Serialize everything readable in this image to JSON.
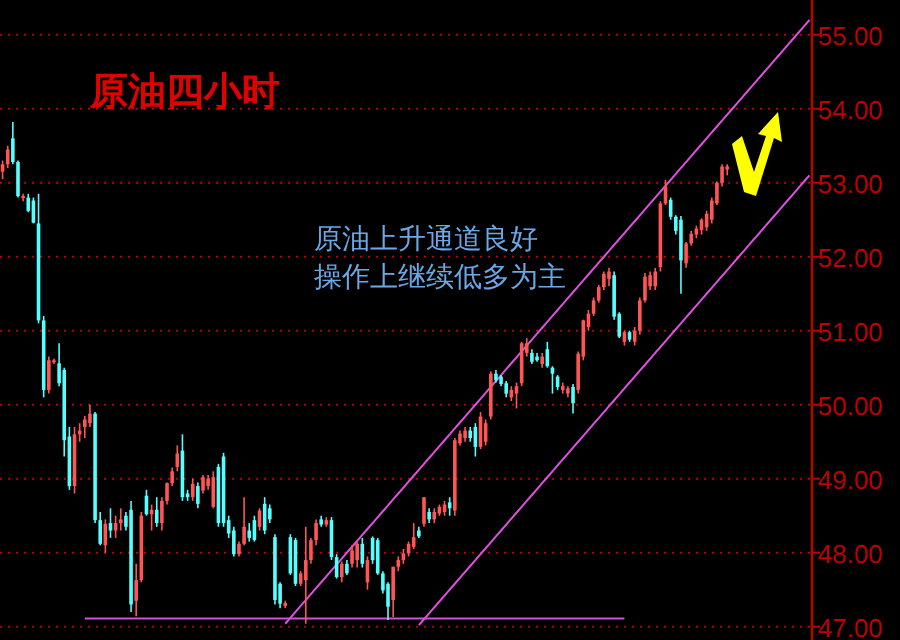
{
  "chart_data": {
    "type": "candlestick",
    "title": "原油四小时",
    "annotations": [
      "原油上升通道良好",
      "操作上继续低多为主"
    ],
    "categories": [
      null,
      null,
      null,
      null,
      null,
      null,
      null,
      null,
      null,
      null,
      null,
      null,
      null,
      null,
      null,
      null,
      null,
      null,
      null,
      null,
      null,
      null,
      null,
      null,
      null,
      null,
      null,
      null,
      null,
      null,
      null,
      null,
      null,
      null,
      null,
      null,
      null,
      null,
      null,
      null,
      null,
      null,
      null,
      null,
      null,
      null,
      null,
      null,
      null,
      null,
      null,
      null,
      null,
      null,
      null,
      null,
      null,
      null,
      null,
      null,
      null,
      null,
      null,
      null,
      null,
      null,
      null,
      null,
      null,
      null,
      null,
      null,
      null,
      null,
      null,
      null,
      null,
      null,
      null,
      null,
      null,
      null,
      null,
      null,
      null,
      null,
      null,
      null,
      null,
      null,
      null,
      null,
      null,
      null,
      null,
      null,
      null,
      null,
      null,
      null,
      null,
      null,
      null,
      null,
      null,
      null,
      null,
      null,
      null,
      null,
      null,
      null,
      null,
      null,
      null,
      null,
      null,
      null,
      null,
      null,
      null,
      null,
      null,
      null,
      null,
      null,
      null,
      null,
      null,
      null,
      null,
      null,
      null,
      null,
      null,
      null,
      null,
      null,
      null,
      null,
      null,
      null,
      null,
      null,
      null,
      null,
      null,
      null,
      null,
      null,
      null,
      null,
      null,
      null,
      null,
      null,
      null,
      null
    ],
    "ohlc": [
      [
        53.15,
        53.3,
        53.05,
        53.25
      ],
      [
        53.25,
        53.5,
        53.2,
        53.45
      ],
      [
        53.6,
        53.82,
        53.25,
        53.28
      ],
      [
        53.28,
        53.3,
        52.8,
        52.82
      ],
      [
        52.8,
        52.85,
        52.75,
        52.82
      ],
      [
        52.8,
        52.85,
        52.6,
        52.62
      ],
      [
        52.76,
        52.8,
        52.45,
        52.46
      ],
      [
        52.45,
        52.85,
        51.1,
        51.14
      ],
      [
        51.14,
        51.2,
        50.1,
        50.2
      ],
      [
        50.2,
        50.65,
        50.15,
        50.6
      ],
      [
        50.58,
        50.62,
        50.55,
        50.6
      ],
      [
        50.56,
        50.83,
        50.25,
        50.29
      ],
      [
        50.47,
        50.5,
        49.3,
        49.52
      ],
      [
        49.57,
        49.7,
        48.85,
        48.9
      ],
      [
        48.9,
        49.7,
        48.8,
        49.6
      ],
      [
        49.6,
        49.75,
        49.5,
        49.65
      ],
      [
        49.7,
        49.85,
        49.55,
        49.8
      ],
      [
        49.75,
        50.0,
        49.7,
        49.88
      ],
      [
        49.88,
        49.9,
        48.4,
        48.44
      ],
      [
        48.44,
        48.55,
        48.1,
        48.12
      ],
      [
        48.1,
        48.45,
        48.0,
        48.39
      ],
      [
        48.4,
        48.6,
        48.2,
        48.3
      ],
      [
        48.3,
        48.5,
        48.2,
        48.4
      ],
      [
        48.4,
        48.6,
        48.3,
        48.45
      ],
      [
        48.5,
        48.55,
        48.3,
        48.35
      ],
      [
        48.58,
        48.7,
        47.2,
        47.3
      ],
      [
        47.35,
        47.85,
        47.14,
        47.63
      ],
      [
        47.63,
        48.55,
        47.6,
        48.5
      ],
      [
        48.77,
        48.85,
        48.5,
        48.52
      ],
      [
        48.52,
        48.65,
        48.3,
        48.58
      ],
      [
        48.58,
        48.75,
        48.35,
        48.4
      ],
      [
        48.4,
        48.75,
        48.3,
        48.7
      ],
      [
        48.7,
        48.95,
        48.65,
        48.94
      ],
      [
        48.94,
        49.15,
        48.9,
        49.1
      ],
      [
        49.16,
        49.45,
        49.1,
        49.34
      ],
      [
        49.38,
        49.6,
        48.7,
        48.75
      ],
      [
        48.8,
        48.85,
        48.7,
        48.75
      ],
      [
        48.75,
        49.0,
        48.7,
        48.93
      ],
      [
        48.9,
        48.95,
        48.6,
        48.66
      ],
      [
        48.84,
        49.05,
        48.8,
        49.02
      ],
      [
        48.9,
        49.05,
        48.85,
        49.0
      ],
      [
        48.62,
        49.1,
        48.6,
        49.02
      ],
      [
        49.16,
        49.2,
        48.35,
        48.4
      ],
      [
        49.3,
        49.35,
        48.35,
        48.4
      ],
      [
        48.44,
        48.5,
        48.2,
        48.26
      ],
      [
        48.3,
        48.35,
        47.95,
        47.98
      ],
      [
        47.98,
        48.15,
        47.95,
        48.12
      ],
      [
        48.12,
        48.75,
        48.1,
        48.35
      ],
      [
        48.3,
        48.4,
        48.15,
        48.2
      ],
      [
        48.44,
        48.5,
        48.15,
        48.17
      ],
      [
        48.35,
        48.6,
        48.3,
        48.57
      ],
      [
        48.66,
        48.75,
        48.25,
        48.3
      ],
      [
        48.6,
        48.65,
        48.4,
        48.45
      ],
      [
        48.21,
        48.25,
        47.3,
        47.36
      ],
      [
        47.58,
        47.6,
        47.25,
        47.31
      ],
      [
        47.28,
        47.35,
        47.25,
        47.32
      ],
      [
        48.21,
        48.25,
        47.7,
        47.72
      ],
      [
        48.17,
        48.2,
        47.55,
        47.58
      ],
      [
        47.58,
        47.75,
        47.55,
        47.72
      ],
      [
        47.63,
        48.35,
        47.04,
        47.9
      ],
      [
        47.9,
        48.2,
        47.85,
        48.17
      ],
      [
        48.17,
        48.45,
        48.1,
        48.4
      ],
      [
        48.45,
        48.5,
        48.35,
        48.38
      ],
      [
        48.38,
        48.48,
        48.35,
        48.44
      ],
      [
        48.44,
        48.48,
        47.9,
        47.94
      ],
      [
        47.94,
        47.98,
        47.65,
        47.67
      ],
      [
        47.67,
        47.88,
        47.6,
        47.85
      ],
      [
        47.85,
        47.9,
        47.7,
        47.72
      ],
      [
        47.85,
        48.1,
        47.8,
        48.03
      ],
      [
        47.9,
        48.15,
        47.8,
        48.12
      ],
      [
        48.12,
        48.2,
        47.8,
        47.85
      ],
      [
        47.6,
        47.95,
        47.5,
        47.9
      ],
      [
        48.2,
        48.22,
        47.85,
        47.9
      ],
      [
        48.17,
        48.2,
        47.7,
        47.72
      ],
      [
        47.72,
        47.75,
        47.45,
        47.49
      ],
      [
        47.58,
        47.6,
        47.09,
        47.27
      ],
      [
        47.36,
        47.81,
        47.13,
        47.81
      ],
      [
        47.81,
        47.95,
        47.75,
        47.9
      ],
      [
        47.9,
        48.05,
        47.85,
        47.99
      ],
      [
        47.99,
        48.15,
        47.95,
        48.12
      ],
      [
        48.08,
        48.4,
        48.05,
        48.21
      ],
      [
        48.3,
        48.35,
        48.2,
        48.22
      ],
      [
        48.39,
        48.75,
        48.35,
        48.75
      ],
      [
        48.55,
        48.6,
        48.4,
        48.45
      ],
      [
        48.45,
        48.6,
        48.4,
        48.55
      ],
      [
        48.53,
        48.65,
        48.5,
        48.62
      ],
      [
        48.55,
        48.7,
        48.5,
        48.65
      ],
      [
        48.68,
        48.75,
        48.5,
        48.6
      ],
      [
        48.57,
        49.55,
        48.5,
        49.52
      ],
      [
        49.48,
        49.65,
        49.45,
        49.61
      ],
      [
        49.55,
        49.7,
        49.5,
        49.65
      ],
      [
        49.65,
        49.7,
        49.5,
        49.55
      ],
      [
        49.7,
        49.75,
        49.3,
        49.43
      ],
      [
        49.43,
        49.9,
        49.4,
        49.84
      ],
      [
        49.5,
        49.8,
        49.45,
        49.75
      ],
      [
        49.84,
        50.45,
        49.8,
        50.42
      ],
      [
        50.42,
        50.47,
        50.3,
        50.33
      ],
      [
        50.38,
        50.4,
        50.25,
        50.28
      ],
      [
        50.29,
        50.32,
        50.1,
        50.15
      ],
      [
        50.1,
        50.25,
        50.05,
        50.2
      ],
      [
        50.15,
        50.3,
        49.95,
        50.25
      ],
      [
        50.29,
        50.85,
        50.25,
        50.83
      ],
      [
        50.7,
        50.9,
        50.65,
        50.83
      ],
      [
        50.7,
        50.75,
        50.55,
        50.58
      ],
      [
        50.65,
        50.7,
        50.58,
        50.6
      ],
      [
        50.55,
        50.7,
        50.5,
        50.65
      ],
      [
        50.75,
        50.85,
        50.5,
        50.52
      ],
      [
        50.5,
        50.52,
        50.15,
        50.42
      ],
      [
        50.38,
        50.4,
        50.2,
        50.24
      ],
      [
        50.2,
        50.3,
        50.15,
        50.25
      ],
      [
        50.15,
        50.25,
        50.1,
        50.22
      ],
      [
        50.24,
        50.28,
        49.88,
        50.02
      ],
      [
        50.2,
        50.72,
        50.15,
        50.69
      ],
      [
        50.65,
        51.15,
        50.6,
        51.14
      ],
      [
        51.05,
        51.28,
        51.0,
        51.23
      ],
      [
        51.23,
        51.45,
        51.2,
        51.41
      ],
      [
        51.41,
        51.62,
        51.38,
        51.59
      ],
      [
        51.59,
        51.8,
        51.55,
        51.77
      ],
      [
        51.7,
        51.85,
        51.6,
        51.8
      ],
      [
        51.75,
        51.8,
        51.15,
        51.19
      ],
      [
        51.23,
        51.25,
        50.9,
        50.92
      ],
      [
        50.85,
        51.0,
        50.8,
        50.98
      ],
      [
        50.98,
        51.0,
        50.85,
        50.88
      ],
      [
        50.85,
        51.05,
        50.8,
        51.0
      ],
      [
        51.0,
        51.45,
        50.95,
        51.41
      ],
      [
        51.41,
        51.78,
        51.38,
        51.73
      ],
      [
        51.6,
        51.8,
        51.55,
        51.75
      ],
      [
        51.6,
        51.85,
        51.55,
        51.8
      ],
      [
        51.86,
        52.75,
        51.8,
        52.72
      ],
      [
        52.72,
        53.04,
        52.7,
        52.95
      ],
      [
        52.77,
        52.8,
        52.5,
        52.54
      ],
      [
        52.54,
        52.56,
        52.3,
        52.35
      ],
      [
        52.5,
        52.55,
        51.5,
        51.95
      ],
      [
        51.91,
        52.2,
        51.85,
        52.18
      ],
      [
        52.18,
        52.35,
        52.15,
        52.31
      ],
      [
        52.3,
        52.42,
        52.25,
        52.38
      ],
      [
        52.36,
        52.52,
        52.3,
        52.5
      ],
      [
        52.4,
        52.62,
        52.35,
        52.58
      ],
      [
        52.5,
        52.8,
        52.45,
        52.76
      ],
      [
        52.72,
        53.02,
        52.7,
        53.0
      ],
      [
        53.0,
        53.25,
        52.95,
        53.22
      ],
      [
        53.18,
        53.25,
        53.1,
        53.22
      ],
      null,
      null,
      null,
      null,
      null,
      null,
      null,
      null,
      null,
      null,
      null,
      null,
      null,
      null,
      null,
      null
    ],
    "colors": [
      "#ff5555",
      "#ff5555",
      "#55ffff",
      "#55ffff",
      "#ff5555",
      "#55ffff",
      "#55ffff",
      "#55ffff",
      "#55ffff",
      "#ff5555",
      "#ff5555",
      "#55ffff",
      "#55ffff",
      "#55ffff",
      "#ff5555",
      "#ff5555",
      "#ff5555",
      "#ff5555",
      "#55ffff",
      "#55ffff",
      "#ff5555",
      "#55ffff",
      "#ff5555",
      "#ff5555",
      "#55ffff",
      "#55ffff",
      "#ff5555",
      "#ff5555",
      "#55ffff",
      "#ff5555",
      "#55ffff",
      "#ff5555",
      "#ff5555",
      "#ff5555",
      "#ff5555",
      "#55ffff",
      "#55ffff",
      "#ff5555",
      "#55ffff",
      "#ff5555",
      "#ff5555",
      "#ff5555",
      "#55ffff",
      "#55ffff",
      "#55ffff",
      "#55ffff",
      "#ff5555",
      "#ff5555",
      "#55ffff",
      "#55ffff",
      "#ff5555",
      "#55ffff",
      "#55ffff",
      "#55ffff",
      "#55ffff",
      "#ff5555",
      "#55ffff",
      "#55ffff",
      "#ff5555",
      "#ff5555",
      "#ff5555",
      "#ff5555",
      "#55ffff",
      "#ff5555",
      "#55ffff",
      "#55ffff",
      "#ff5555",
      "#55ffff",
      "#ff5555",
      "#ff5555",
      "#55ffff",
      "#ff5555",
      "#55ffff",
      "#55ffff",
      "#55ffff",
      "#55ffff",
      "#ff5555",
      "#ff5555",
      "#ff5555",
      "#ff5555",
      "#ff5555",
      "#55ffff",
      "#ff5555",
      "#55ffff",
      "#ff5555",
      "#ff5555",
      "#ff5555",
      "#55ffff",
      "#ff5555",
      "#ff5555",
      "#ff5555",
      "#55ffff",
      "#55ffff",
      "#ff5555",
      "#ff5555",
      "#ff5555",
      "#55ffff",
      "#55ffff",
      "#55ffff",
      "#ff5555",
      "#ff5555",
      "#ff5555",
      "#ff5555",
      "#55ffff",
      "#55ffff",
      "#ff5555",
      "#55ffff",
      "#55ffff",
      "#55ffff",
      "#ff5555",
      "#ff5555",
      "#55ffff",
      "#ff5555",
      "#ff5555",
      "#ff5555",
      "#ff5555",
      "#ff5555",
      "#ff5555",
      "#ff5555",
      "#55ffff",
      "#55ffff",
      "#ff5555",
      "#55ffff",
      "#ff5555",
      "#ff5555",
      "#ff5555",
      "#ff5555",
      "#ff5555",
      "#ff5555",
      "#ff5555",
      "#55ffff",
      "#55ffff",
      "#55ffff",
      "#ff5555",
      "#ff5555",
      "#ff5555",
      "#ff5555",
      "#ff5555",
      "#ff5555",
      "#ff5555",
      "#ff5555",
      "#ff5555",
      null,
      null,
      null,
      null,
      null,
      null,
      null,
      null,
      null,
      null,
      null,
      null,
      null,
      null,
      null,
      null
    ],
    "series": [
      {
        "type": "line",
        "color": "#e050e0",
        "values": [
          null,
          null,
          null,
          null,
          null,
          null,
          null,
          null,
          null,
          null,
          null,
          null,
          null,
          null,
          null,
          null,
          null,
          null,
          null,
          null,
          null,
          null,
          null,
          null,
          null,
          null,
          null,
          null,
          null,
          null,
          null,
          null,
          null,
          null,
          null,
          null,
          null,
          null,
          null,
          null,
          null,
          null,
          null,
          null,
          null,
          null,
          null,
          null,
          null,
          null,
          null,
          null,
          null,
          null,
          null,
          47.04,
          47.12,
          47.2,
          47.28,
          47.36,
          47.44,
          47.52,
          47.6,
          47.68,
          47.76,
          47.84,
          47.92,
          48.0,
          48.08,
          48.16,
          48.24,
          48.32,
          48.4,
          48.48,
          48.56,
          48.64,
          48.72,
          48.8,
          48.88,
          48.96,
          49.04,
          49.12,
          49.2,
          49.28,
          49.36,
          49.44,
          49.52,
          49.6,
          49.68,
          49.76,
          49.84,
          49.92,
          50.0,
          50.08,
          50.16,
          50.24,
          50.32,
          50.4,
          50.48,
          50.56,
          50.64,
          50.72,
          50.8,
          50.88,
          50.96,
          51.04,
          51.12,
          51.2,
          51.28,
          51.36,
          51.44,
          51.52,
          51.6,
          51.68,
          51.76,
          51.84,
          51.92,
          52.0,
          52.08,
          52.16,
          52.24,
          52.32,
          52.4,
          52.48,
          52.56,
          52.64,
          52.72,
          52.8,
          52.88,
          52.96,
          53.04,
          53.12,
          53.2,
          53.28,
          53.36,
          53.44,
          53.52,
          53.6,
          53.68,
          53.76,
          53.84,
          53.92,
          54.0,
          54.08,
          54.16,
          54.24,
          54.32,
          54.4,
          54.48,
          54.56,
          54.64,
          54.72,
          54.8,
          54.88,
          54.96,
          55.04,
          55.12,
          55.2
        ]
      },
      {
        "type": "line",
        "color": "#e050e0",
        "values": [
          null,
          null,
          null,
          null,
          null,
          null,
          null,
          null,
          null,
          null,
          null,
          null,
          null,
          null,
          null,
          null,
          null,
          null,
          null,
          null,
          null,
          null,
          null,
          null,
          null,
          null,
          null,
          null,
          null,
          null,
          null,
          null,
          null,
          null,
          null,
          null,
          null,
          null,
          null,
          null,
          null,
          null,
          null,
          null,
          null,
          null,
          null,
          null,
          null,
          null,
          null,
          null,
          null,
          null,
          null,
          null,
          null,
          null,
          null,
          null,
          null,
          null,
          null,
          null,
          null,
          null,
          null,
          null,
          null,
          null,
          null,
          null,
          null,
          null,
          null,
          null,
          null,
          null,
          null,
          null,
          null,
          47.02,
          47.1,
          47.18,
          47.26,
          47.34,
          47.42,
          47.5,
          47.58,
          47.66,
          47.74,
          47.82,
          47.9,
          47.98,
          48.06,
          48.14,
          48.22,
          48.3,
          48.38,
          48.46,
          48.54,
          48.62,
          48.7,
          48.78,
          48.86,
          48.94,
          49.02,
          49.1,
          49.18,
          49.26,
          49.34,
          49.42,
          49.5,
          49.58,
          49.66,
          49.74,
          49.82,
          49.9,
          49.98,
          50.06,
          50.14,
          50.22,
          50.3,
          50.38,
          50.46,
          50.54,
          50.62,
          50.7,
          50.78,
          50.86,
          50.94,
          51.02,
          51.1,
          51.18,
          51.26,
          51.34,
          51.42,
          51.5,
          51.58,
          51.66,
          51.74,
          51.82,
          51.9,
          51.98,
          52.06,
          52.14,
          52.22,
          52.3,
          52.38,
          52.46,
          52.54,
          52.62,
          52.7,
          52.78,
          52.86,
          52.94,
          53.02,
          53.1
        ]
      },
      {
        "type": "line",
        "color": "#d050d8",
        "values": [
          null,
          null,
          null,
          null,
          null,
          null,
          null,
          null,
          null,
          null,
          null,
          null,
          null,
          null,
          null,
          null,
          47.11,
          47.11,
          47.11,
          47.11,
          47.11,
          47.11,
          47.11,
          47.11,
          47.11,
          47.11,
          47.11,
          47.11,
          47.11,
          47.11,
          47.11,
          47.11,
          47.11,
          47.11,
          47.11,
          47.11,
          47.11,
          47.11,
          47.11,
          47.11,
          47.11,
          47.11,
          47.11,
          47.11,
          47.11,
          47.11,
          47.11,
          47.11,
          47.11,
          47.11,
          47.11,
          47.11,
          47.11,
          47.11,
          47.11,
          47.11,
          47.11,
          47.11,
          47.11,
          47.11,
          47.11,
          47.11,
          47.11,
          47.11,
          47.11,
          47.11,
          47.11,
          47.11,
          47.11,
          47.11,
          47.11,
          47.11,
          47.11,
          47.11,
          47.11,
          47.11,
          47.11,
          47.11,
          47.11,
          47.11,
          47.11,
          47.11,
          47.11,
          47.11,
          47.11,
          47.11,
          47.11,
          47.11,
          47.11,
          47.11,
          47.11,
          47.11,
          47.11,
          47.11,
          47.11,
          47.11,
          47.11,
          47.11,
          47.11,
          47.11,
          47.11,
          47.11,
          47.11,
          47.11,
          47.11,
          47.11,
          47.11,
          47.11,
          47.11,
          47.11,
          47.11,
          47.11,
          47.11,
          47.11,
          47.11,
          47.11,
          47.11,
          47.11,
          47.11,
          47.11,
          47.11,
          47.11,
          null,
          null,
          null,
          null,
          null,
          null,
          null,
          null,
          null,
          null,
          null,
          null,
          null,
          null,
          null,
          null,
          null,
          null,
          null,
          null,
          null,
          null,
          null,
          null,
          null,
          null,
          null,
          null,
          null,
          null,
          null,
          null,
          null,
          null,
          null,
          null
        ]
      }
    ],
    "ylim": [
      46.82,
      55.47
    ],
    "yticks": [
      {
        "value": 47,
        "label": "47.00"
      },
      {
        "value": 48,
        "label": "48.00"
      },
      {
        "value": 49,
        "label": "49.00"
      },
      {
        "value": 50,
        "label": "50.00"
      },
      {
        "value": 51,
        "label": "51.00"
      },
      {
        "value": 52,
        "label": "52.00"
      },
      {
        "value": 53,
        "label": "53.00"
      },
      {
        "value": 54,
        "label": "54.00"
      },
      {
        "value": 55,
        "label": "55.00"
      }
    ],
    "tick_labels": "y",
    "grid": "y"
  }
}
